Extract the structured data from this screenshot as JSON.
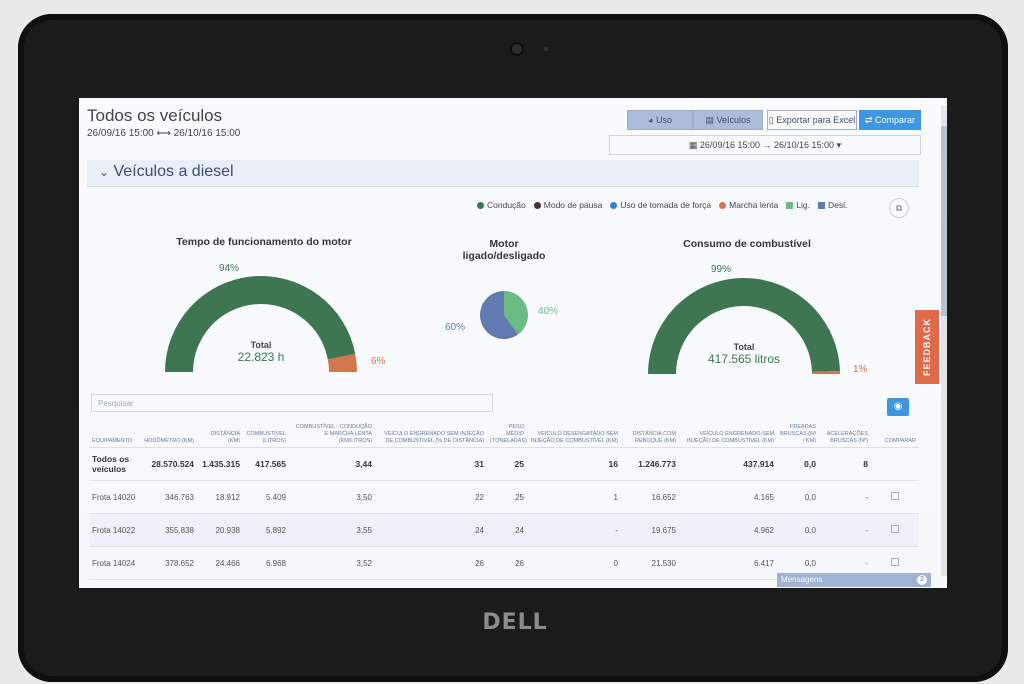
{
  "device": {
    "brand": "DELL"
  },
  "page": {
    "title": "Todos os veículos",
    "date_range": "26/09/16 15:00 ⟷ 26/10/16 15:00"
  },
  "toolbar": {
    "uso_label": "Uso",
    "veiculos_label": "Veículos",
    "export_label": "Exportar para Excel",
    "compare_label": "Comparar",
    "date_picker": "26/09/16 15:00  →  26/10/16 15:00"
  },
  "section": {
    "title": "Veículos a diesel"
  },
  "legend": [
    {
      "label": "Condução",
      "color": "#2e6b3f",
      "shape": "dot"
    },
    {
      "label": "Modo de pausa",
      "color": "#3b1f1a",
      "shape": "dot"
    },
    {
      "label": "Uso de tomada de força",
      "color": "#2a74c8",
      "shape": "dot"
    },
    {
      "label": "Marcha lenta",
      "color": "#d36b3a",
      "shape": "dot"
    },
    {
      "label": "Lig.",
      "color": "#5fb877",
      "shape": "square"
    },
    {
      "label": "Desl.",
      "color": "#556fa8",
      "shape": "square"
    }
  ],
  "gauge_engine": {
    "title": "Tempo de funcionamento do motor",
    "main_pct_label": "94%",
    "minor_pct_label": "6%",
    "main_pct": 0.94,
    "total_label": "Total",
    "total_value": "22.823 h",
    "main_color": "#2e6b3f",
    "minor_color": "#d36b3a"
  },
  "pie_motor": {
    "title_line1": "Motor",
    "title_line2": "ligado/desligado",
    "on_pct_label": "40%",
    "off_pct_label": "60%",
    "on_pct": 0.4,
    "on_color": "#5fb877",
    "off_color": "#556fa8"
  },
  "gauge_fuel": {
    "title": "Consumo de combustível",
    "main_pct_label": "99%",
    "minor_pct_label": "1%",
    "main_pct": 0.99,
    "total_label": "Total",
    "total_value": "417.565 litros",
    "main_color": "#2e6b3f",
    "minor_color": "#d36b3a"
  },
  "feedback_label": "FEEDBACK",
  "search": {
    "placeholder": "Pesquisar"
  },
  "table": {
    "headers": [
      "EQUIPAMENTO",
      "HODÔMETRO (KM)",
      "DISTÂNCIA (KM)",
      "COMBUSTÍVEL (LITROS)",
      "COMBUSTÍVEL - CONDUÇÃO E MARCHA LENTA (KM/LITROS)",
      "VEÍCULO ENGRENADO SEM INJEÇÃO DE COMBUSTÍVEL (% DE DISTÂNCIA)",
      "PESO MÉDIO (TONELADAS)",
      "VEÍCULO DESENGATADO SEM INJEÇÃO DE COMBUSTÍVEL (KM)",
      "DISTÂNCIA COM REBOQUE (KM)",
      "VEÍCULO ENGRENADO SEM INJEÇÃO DE COMBUSTÍVEL (KM)",
      "FREADAS BRUSCAS (Nº / KM)",
      "ACELERAÇÕES BRUSCAS (Nº)",
      "COMPARAR"
    ],
    "rows": [
      [
        "Todos os veículos",
        "28.570.524",
        "1.435.315",
        "417.565",
        "3,44",
        "31",
        "25",
        "16",
        "1.246.773",
        "437.914",
        "0,0",
        "8",
        ""
      ],
      [
        "Frota 14020",
        "346.763",
        "18.912",
        "5.409",
        "3,50",
        "22",
        "25",
        "1",
        "16.652",
        "4.165",
        "0,0",
        "-",
        "cb"
      ],
      [
        "Frota 14022",
        "355.838",
        "20.938",
        "5.892",
        "3,55",
        "24",
        "24",
        "-",
        "19.675",
        "4.962",
        "0,0",
        "-",
        "cb"
      ],
      [
        "Frota 14024",
        "378.652",
        "24.466",
        "6.968",
        "3,52",
        "26",
        "26",
        "0",
        "21.530",
        "6.417",
        "0,0",
        "-",
        "cb"
      ]
    ]
  },
  "messages": {
    "label": "Mensagens",
    "count": "2"
  }
}
